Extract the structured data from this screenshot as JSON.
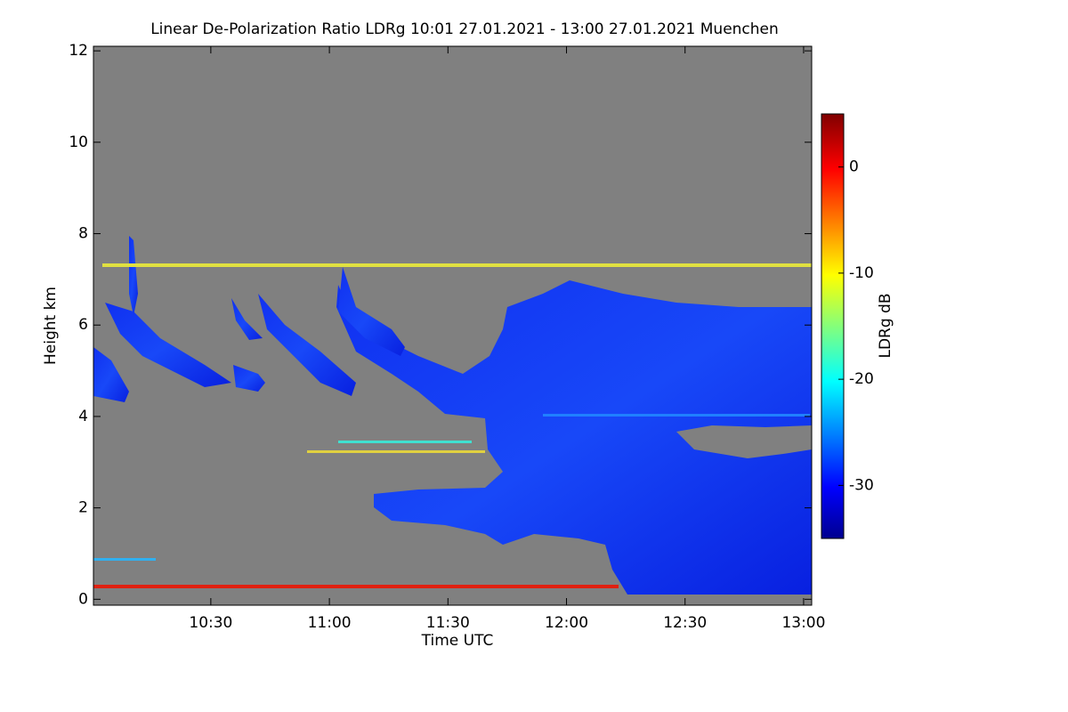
{
  "chart_data": {
    "type": "heatmap",
    "title": "Linear De-Polarization Ratio LDRg   10:01 27.01.2021 - 13:00 27.01.2021 Muenchen",
    "x_label": "Time UTC",
    "y_label": "Height km",
    "colorbar_label": "LDRg dB",
    "xlim": [
      10.005,
      13.034
    ],
    "xticks": [
      {
        "value": 10.5,
        "label": "10:30"
      },
      {
        "value": 11,
        "label": "11:00"
      },
      {
        "value": 11.5,
        "label": "11:30"
      },
      {
        "value": 12,
        "label": "12:00"
      },
      {
        "value": 12.5,
        "label": "12:30"
      },
      {
        "value": 13,
        "label": "13:00"
      }
    ],
    "ylim": [
      -0.13,
      12.1
    ],
    "yticks": [
      0,
      2,
      4,
      6,
      8,
      10,
      12
    ],
    "clim": [
      -35,
      5
    ],
    "cticks": [
      0,
      -10,
      -20,
      -30
    ]
  }
}
